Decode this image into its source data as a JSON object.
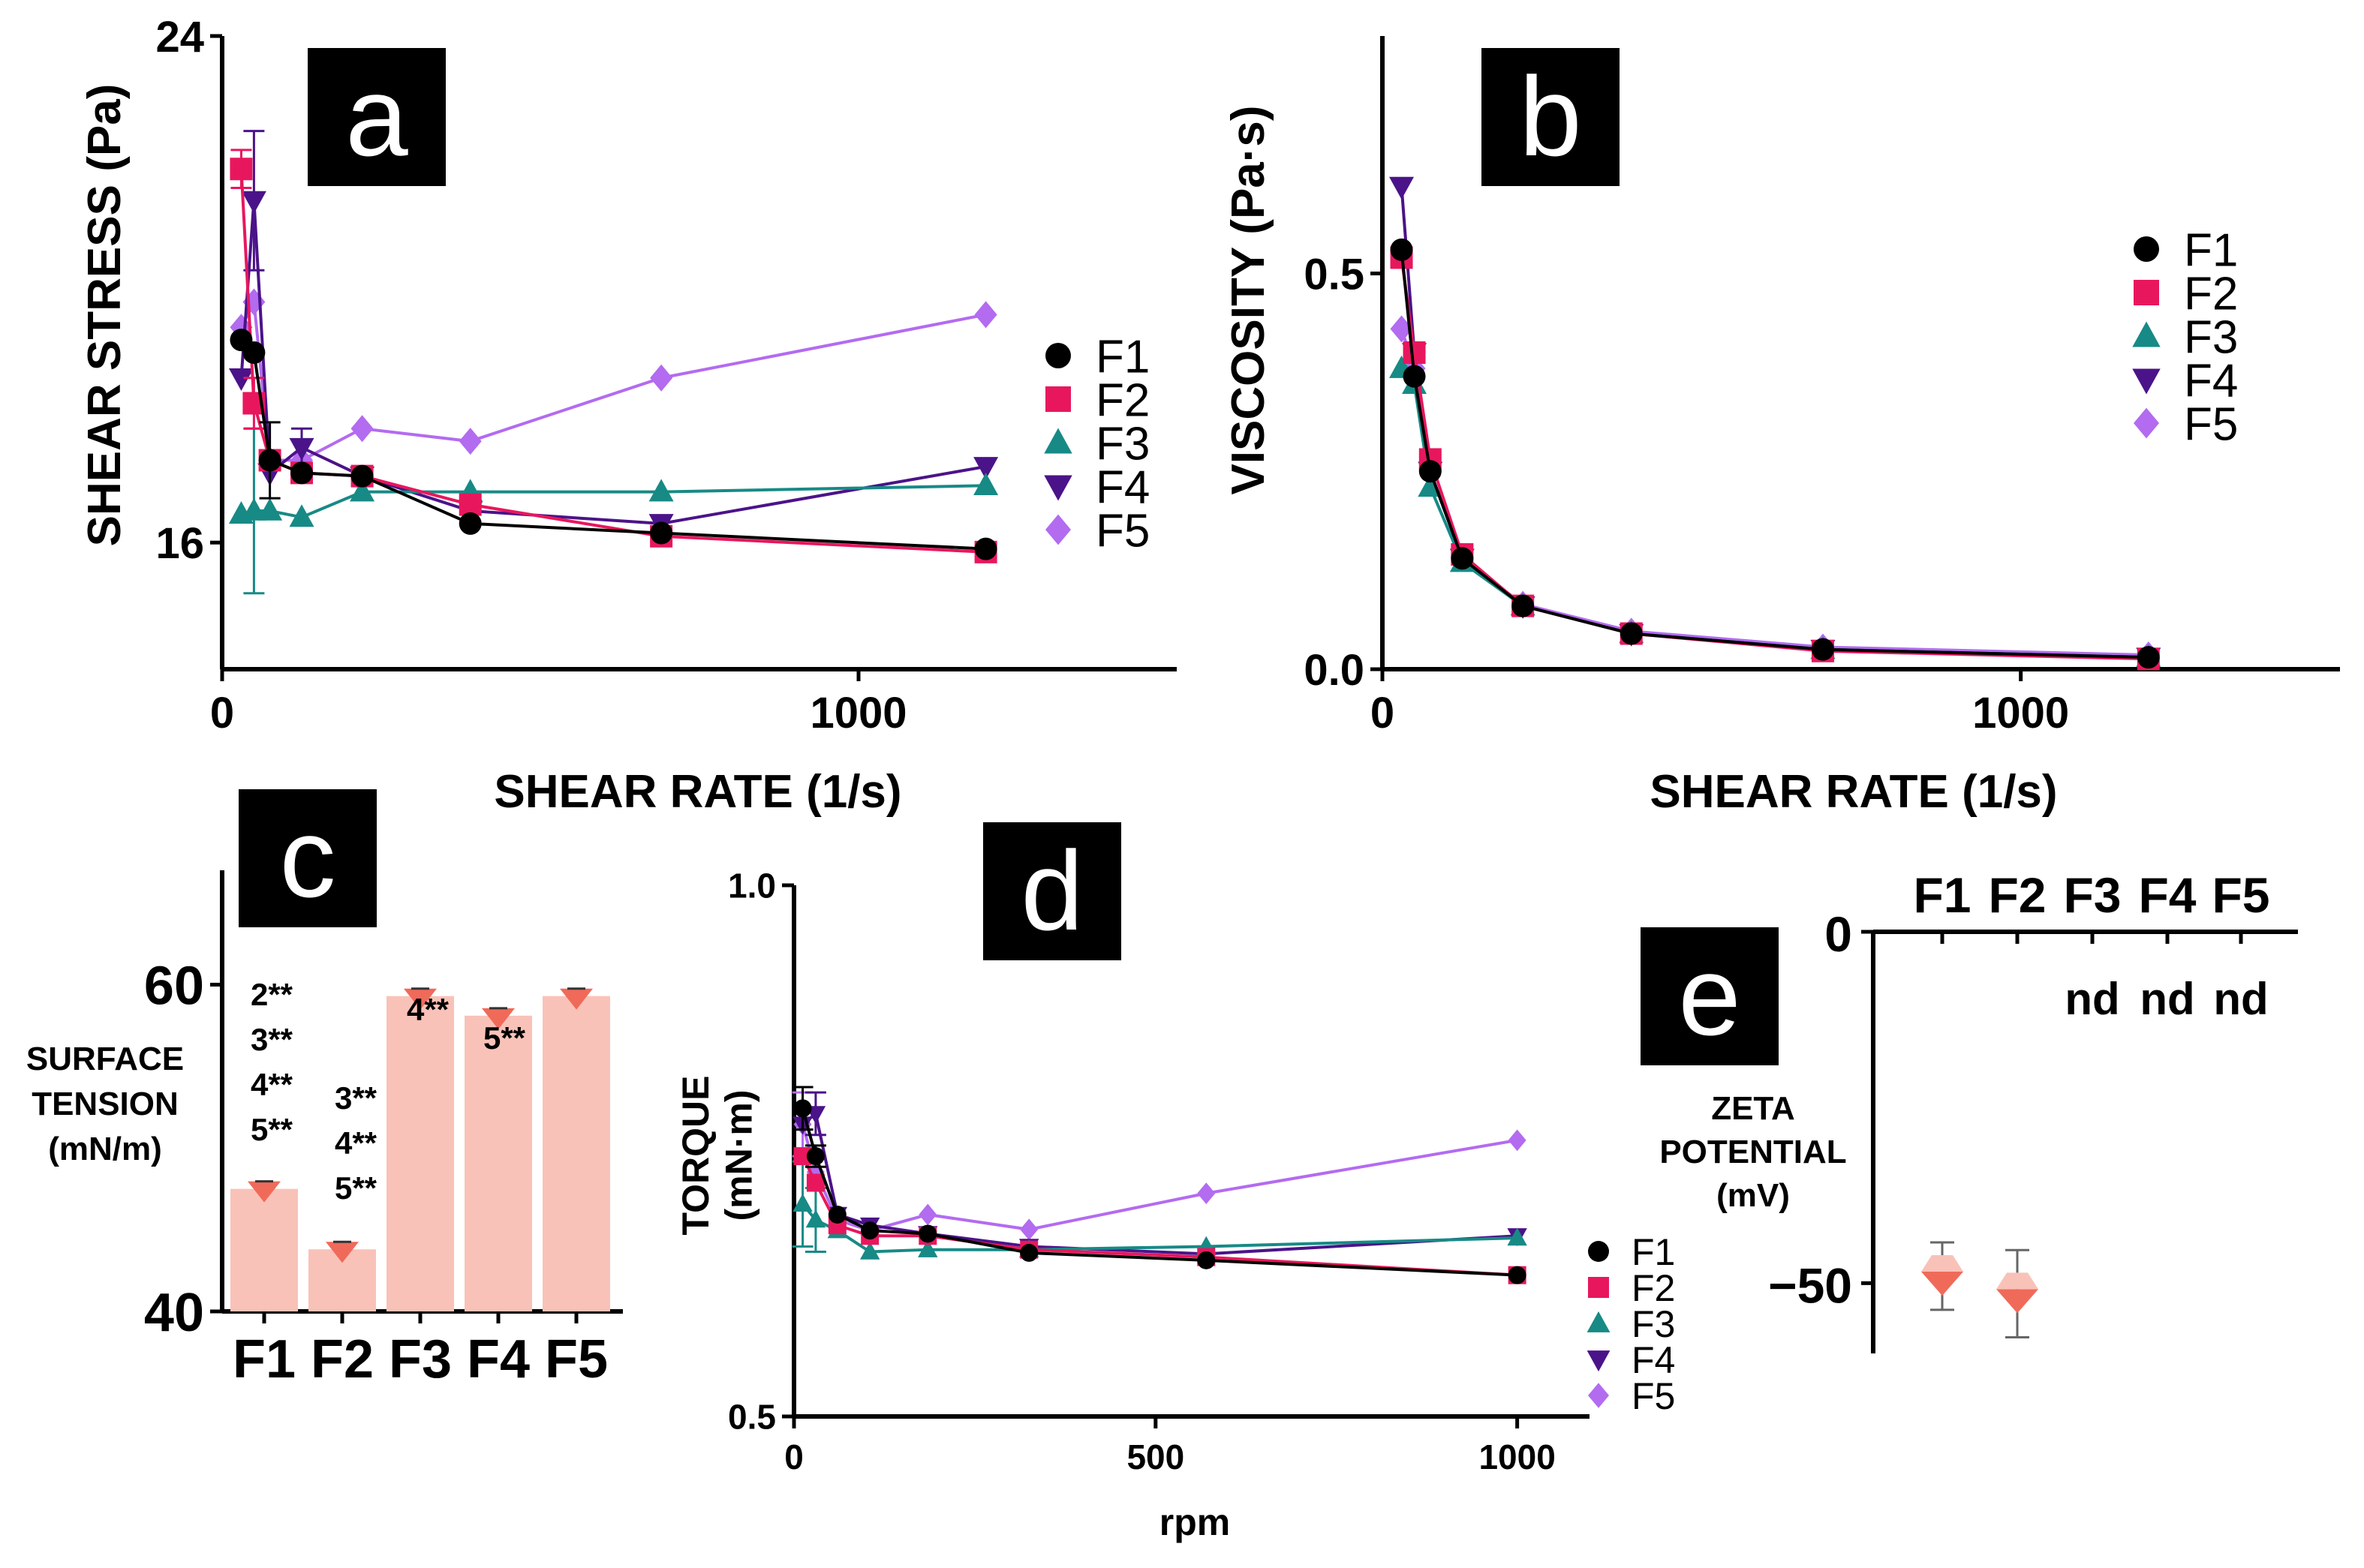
{
  "colors": {
    "F1": "#000000",
    "F2": "#e8175d",
    "F3": "#178a86",
    "F4": "#4b1389",
    "F5": "#b36bf0",
    "bar": "#f9c2b8",
    "bar_marker": "#f06a5a",
    "panel_bg": "#000000"
  },
  "chart_data": [
    {
      "panel": "a",
      "type": "line",
      "xlabel": "SHEAR RATE (1/s)",
      "ylabel": "SHEAR STRESS (Pa)",
      "xlim": [
        0,
        1500
      ],
      "ylim": [
        14,
        24
      ],
      "xticks": [
        0,
        1000
      ],
      "yticks": [
        16,
        24
      ],
      "x": [
        30,
        50,
        75,
        125,
        220,
        390,
        690,
        1200
      ],
      "series": [
        {
          "name": "F1",
          "marker": "circle",
          "values": [
            19.2,
            19.0,
            17.3,
            17.1,
            17.05,
            16.3,
            16.15,
            15.9
          ],
          "err": [
            0,
            0,
            0.6,
            0,
            0,
            0,
            0,
            0
          ]
        },
        {
          "name": "F2",
          "marker": "square",
          "values": [
            21.9,
            18.2,
            17.3,
            17.1,
            17.05,
            16.6,
            16.1,
            15.85
          ],
          "err": [
            0.3,
            0.4,
            0,
            0,
            0,
            0,
            0,
            0
          ]
        },
        {
          "name": "F3",
          "marker": "triangle-up",
          "values": [
            16.45,
            16.5,
            16.5,
            16.4,
            16.8,
            16.8,
            16.8,
            16.9
          ],
          "err": [
            0,
            1.3,
            0,
            0,
            0,
            0,
            0,
            0
          ]
        },
        {
          "name": "F4",
          "marker": "triangle-down",
          "values": [
            18.6,
            21.4,
            17.1,
            17.5,
            17.05,
            16.5,
            16.3,
            17.2
          ],
          "err": [
            0,
            1.1,
            0,
            0.3,
            0,
            0,
            0,
            0
          ]
        },
        {
          "name": "F5",
          "marker": "diamond",
          "values": [
            19.4,
            19.8,
            17.3,
            17.3,
            17.8,
            17.6,
            18.6,
            19.6
          ],
          "err": [
            0,
            0,
            0,
            0,
            0,
            0,
            0,
            0
          ]
        }
      ],
      "legend": "right"
    },
    {
      "panel": "b",
      "type": "line",
      "xlabel": "SHEAR RATE (1/s)",
      "ylabel": "VISCOSITY (Pa·s)",
      "xlim": [
        0,
        1500
      ],
      "ylim": [
        0,
        0.8
      ],
      "xticks": [
        0,
        1000
      ],
      "yticks": [
        0.0,
        0.5
      ],
      "ytick_labels": [
        "0.0",
        "0.5"
      ],
      "x": [
        30,
        50,
        75,
        125,
        220,
        390,
        690,
        1200
      ],
      "series": [
        {
          "name": "F1",
          "marker": "circle",
          "values": [
            0.53,
            0.37,
            0.25,
            0.14,
            0.08,
            0.045,
            0.025,
            0.015
          ]
        },
        {
          "name": "F2",
          "marker": "square",
          "values": [
            0.52,
            0.4,
            0.265,
            0.145,
            0.08,
            0.045,
            0.023,
            0.013
          ]
        },
        {
          "name": "F3",
          "marker": "triangle-up",
          "values": [
            0.38,
            0.36,
            0.23,
            0.135,
            0.08,
            0.045,
            0.025,
            0.015
          ]
        },
        {
          "name": "F4",
          "marker": "triangle-down",
          "values": [
            0.61,
            0.4,
            0.25,
            0.14,
            0.08,
            0.045,
            0.025,
            0.015
          ]
        },
        {
          "name": "F5",
          "marker": "diamond",
          "values": [
            0.43,
            0.38,
            0.25,
            0.14,
            0.082,
            0.048,
            0.028,
            0.018
          ]
        }
      ],
      "legend": "right"
    },
    {
      "panel": "c",
      "type": "bar",
      "ylabel": "SURFACE TENSION (mN/m)",
      "ylabel_lines": [
        "SURFACE",
        "TENSION",
        "(mN/m)"
      ],
      "ylim": [
        40,
        67
      ],
      "yticks": [
        40,
        60
      ],
      "categories": [
        "F1",
        "F2",
        "F3",
        "F4",
        "F5"
      ],
      "values": [
        47.5,
        43.8,
        59.3,
        58.1,
        59.3
      ],
      "significance": [
        [
          "2**",
          "3**",
          "4**",
          "5**"
        ],
        [
          "3**",
          "4**",
          "5**"
        ],
        [
          "4**"
        ],
        [
          "5**"
        ],
        []
      ]
    },
    {
      "panel": "d",
      "type": "line",
      "xlabel": "rpm",
      "ylabel": "TORQUE (mN·m)",
      "ylabel_lines": [
        "TORQUE",
        "(mN·m)"
      ],
      "xlim": [
        0,
        1100
      ],
      "ylim": [
        0.5,
        1.0
      ],
      "xticks": [
        0,
        500,
        1000
      ],
      "yticks": [
        0.5,
        1.0
      ],
      "ytick_labels": [
        "0.5",
        "1.0"
      ],
      "x": [
        12,
        30,
        60,
        105,
        185,
        325,
        570,
        1000
      ],
      "series": [
        {
          "name": "F1",
          "marker": "circle",
          "values": [
            0.79,
            0.745,
            0.69,
            0.675,
            0.672,
            0.654,
            0.647,
            0.633
          ],
          "err": [
            0.02,
            0.01,
            0,
            0,
            0,
            0,
            0,
            0
          ]
        },
        {
          "name": "F2",
          "marker": "square",
          "values": [
            0.745,
            0.72,
            0.68,
            0.67,
            0.67,
            0.657,
            0.65,
            0.633
          ]
        },
        {
          "name": "F3",
          "marker": "triangle-up",
          "values": [
            0.7,
            0.685,
            0.675,
            0.655,
            0.657,
            0.657,
            0.66,
            0.668
          ],
          "err": [
            0.04,
            0.03,
            0,
            0,
            0,
            0,
            0,
            0
          ]
        },
        {
          "name": "F4",
          "marker": "triangle-down",
          "values": [
            0.775,
            0.785,
            0.69,
            0.68,
            0.672,
            0.66,
            0.653,
            0.67
          ],
          "err": [
            0,
            0.02,
            0,
            0,
            0,
            0,
            0,
            0
          ]
        },
        {
          "name": "F5",
          "marker": "diamond",
          "values": [
            0.775,
            0.73,
            0.685,
            0.675,
            0.69,
            0.676,
            0.71,
            0.76
          ],
          "err": [
            0.03,
            0,
            0,
            0,
            0,
            0,
            0,
            0
          ]
        }
      ],
      "legend": "bottom-right"
    },
    {
      "panel": "e",
      "type": "bar",
      "ylabel": "ZETA POTENTIAL (mV)",
      "ylabel_lines": [
        "ZETA",
        "POTENTIAL",
        "(mV)"
      ],
      "ylim": [
        -60,
        0
      ],
      "yticks": [
        0,
        -50
      ],
      "ytick_labels": [
        "0",
        "−50"
      ],
      "categories": [
        "F1",
        "F2",
        "F3",
        "F4",
        "F5"
      ],
      "values": [
        -49,
        -51.5,
        null,
        null,
        null
      ],
      "err": [
        4.8,
        6.2,
        0,
        0,
        0
      ],
      "annotations": [
        "",
        "",
        "nd",
        "nd",
        "nd"
      ]
    }
  ]
}
